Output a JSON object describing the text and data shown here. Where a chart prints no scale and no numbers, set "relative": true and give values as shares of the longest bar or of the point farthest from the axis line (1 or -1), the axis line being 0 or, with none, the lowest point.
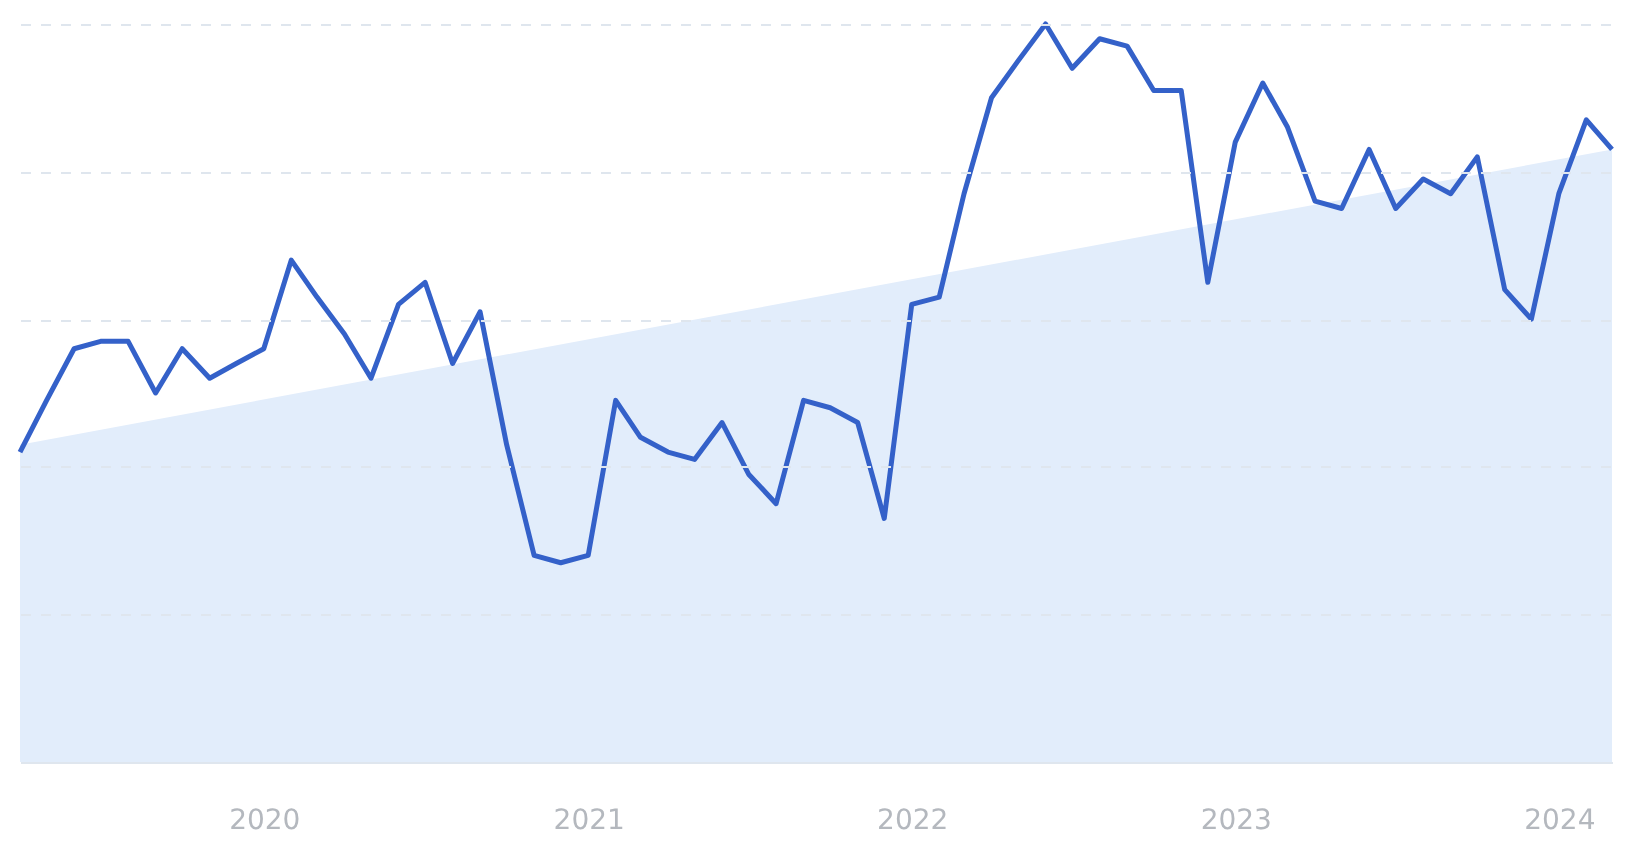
{
  "chart_data": {
    "type": "line",
    "relative": true,
    "grid": "y",
    "marker": "none",
    "line_style": "solid",
    "x": [
      "2019-04",
      "2019-05",
      "2019-06",
      "2019-07",
      "2019-08",
      "2019-09",
      "2019-10",
      "2019-11",
      "2019-12",
      "2020-01",
      "2020-02",
      "2020-03",
      "2020-04",
      "2020-05",
      "2020-06",
      "2020-07",
      "2020-08",
      "2020-09",
      "2020-10",
      "2020-11",
      "2020-12",
      "2021-01",
      "2021-02",
      "2021-03",
      "2021-04",
      "2021-05",
      "2021-06",
      "2021-07",
      "2021-08",
      "2021-09",
      "2021-10",
      "2021-11",
      "2021-12",
      "2022-01",
      "2022-02",
      "2022-03",
      "2022-04",
      "2022-05",
      "2022-06",
      "2022-07",
      "2022-08",
      "2022-09",
      "2022-10",
      "2022-11",
      "2022-12",
      "2023-01",
      "2023-02",
      "2023-03",
      "2023-04",
      "2023-05",
      "2023-06",
      "2023-07",
      "2023-08",
      "2023-09",
      "2023-10",
      "2023-11",
      "2023-12",
      "2024-01",
      "2024-02",
      "2024-03"
    ],
    "xlim": [
      "2019-04",
      "2024-03"
    ],
    "xticks": [
      "2020",
      "2021",
      "2022",
      "2023",
      "2024"
    ],
    "series": [
      {
        "type": "area",
        "color": "#e2edfb",
        "x": [
          "2019-04",
          "2024-03"
        ],
        "values": [
          0.43,
          0.83
        ]
      },
      {
        "color": "#3461c9",
        "values": [
          0.42,
          0.49,
          0.56,
          0.57,
          0.57,
          0.5,
          0.56,
          0.52,
          0.54,
          0.56,
          0.68,
          0.63,
          0.58,
          0.52,
          0.62,
          0.65,
          0.54,
          0.61,
          0.43,
          0.28,
          0.27,
          0.28,
          0.49,
          0.44,
          0.42,
          0.41,
          0.46,
          0.39,
          0.35,
          0.49,
          0.48,
          0.46,
          0.33,
          0.62,
          0.63,
          0.77,
          0.9,
          0.95,
          1,
          0.94,
          0.98,
          0.97,
          0.91,
          0.91,
          0.65,
          0.84,
          0.92,
          0.86,
          0.76,
          0.75,
          0.83,
          0.75,
          0.79,
          0.77,
          0.82,
          0.64,
          0.6,
          0.77,
          0.87,
          0.83
        ]
      }
    ]
  }
}
